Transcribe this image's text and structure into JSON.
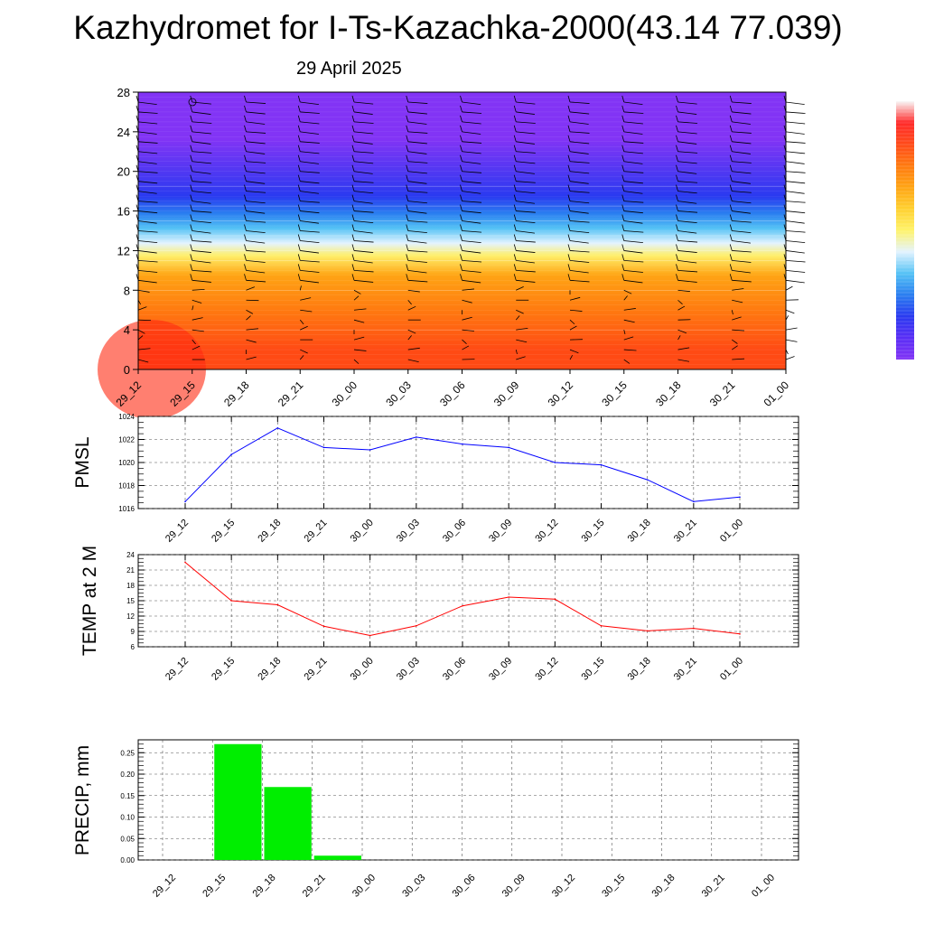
{
  "header": {
    "title": "Kazhydromet for I-Ts-Kazachka-2000(43.14 77.039)",
    "date": "29 April 2025"
  },
  "time_labels": [
    "29_12",
    "29_15",
    "29_18",
    "29_21",
    "30_00",
    "30_03",
    "30_06",
    "30_09",
    "30_12",
    "30_15",
    "30_18",
    "30_21",
    "01_00"
  ],
  "chart_data": [
    {
      "type": "heatmap",
      "ylim": [
        0,
        28
      ],
      "yticks": [
        "0",
        "4",
        "8",
        "12",
        "16",
        "20",
        "24",
        "28"
      ],
      "categories": [
        "29_12",
        "29_15",
        "29_18",
        "29_21",
        "30_00",
        "30_03",
        "30_06",
        "30_09",
        "30_12",
        "30_15",
        "30_18",
        "30_21",
        "01_00"
      ],
      "color_bands": [
        {
          "from": 0,
          "to": 4,
          "color": "#ff4a14"
        },
        {
          "from": 4,
          "to": 8,
          "color": "#ff7a10"
        },
        {
          "from": 8,
          "to": 11,
          "color": "#ffa414"
        },
        {
          "from": 11,
          "to": 12,
          "color": "#ffef6a"
        },
        {
          "from": 12,
          "to": 13.5,
          "color": "#e3f3ff"
        },
        {
          "from": 13.5,
          "to": 15,
          "color": "#54c2f5"
        },
        {
          "from": 15,
          "to": 16.5,
          "color": "#2a7ef0"
        },
        {
          "from": 16.5,
          "to": 18.5,
          "color": "#2a3af0"
        },
        {
          "from": 18.5,
          "to": 28,
          "color": "#8234f5"
        }
      ],
      "colorbar": [
        "#f8f8f8",
        "#ff2a2a",
        "#ff4b1a",
        "#ff7a10",
        "#ffa414",
        "#ffd030",
        "#fff36a",
        "#e3f3ff",
        "#54c2f5",
        "#2a7ef0",
        "#2a3af0",
        "#5a2ef5",
        "#8234f5"
      ]
    },
    {
      "type": "line",
      "ylabel": "PMSL",
      "ylim": [
        1016,
        1024
      ],
      "yticks": [
        "1016",
        "1018",
        "1020",
        "1022",
        "1024"
      ],
      "categories": [
        "29_12",
        "29_15",
        "29_18",
        "29_21",
        "30_00",
        "30_03",
        "30_06",
        "30_09",
        "30_12",
        "30_15",
        "30_18",
        "30_21",
        "01_00"
      ],
      "series": [
        {
          "values": [
            1016.6,
            1020.7,
            1023.0,
            1021.3,
            1021.1,
            1022.2,
            1021.6,
            1021.3,
            1020.0,
            1019.8,
            1018.5,
            1016.6,
            1017.0
          ],
          "color": "#0000ff"
        }
      ]
    },
    {
      "type": "line",
      "ylabel": "TEMP at 2 M",
      "ylim": [
        6,
        24
      ],
      "yticks": [
        "6",
        "9",
        "12",
        "15",
        "18",
        "21",
        "24"
      ],
      "categories": [
        "29_12",
        "29_15",
        "29_18",
        "29_21",
        "30_00",
        "30_03",
        "30_06",
        "30_09",
        "30_12",
        "30_15",
        "30_18",
        "30_21",
        "01_00"
      ],
      "series": [
        {
          "values": [
            22.5,
            15.0,
            14.2,
            10.0,
            8.2,
            10.1,
            14.0,
            15.7,
            15.3,
            10.1,
            9.1,
            9.6,
            8.5
          ],
          "color": "#ff0000"
        }
      ]
    },
    {
      "type": "bar",
      "ylabel": "PRECIP, mm",
      "ylim": [
        0,
        0.28
      ],
      "yticks": [
        "0.00",
        "0.05",
        "0.10",
        "0.15",
        "0.20",
        "0.25"
      ],
      "categories": [
        "29_12",
        "29_15",
        "29_18",
        "29_21",
        "30_00",
        "30_03",
        "30_06",
        "30_09",
        "30_12",
        "30_15",
        "30_18",
        "30_21",
        "01_00"
      ],
      "series": [
        {
          "values": [
            0,
            0.27,
            0.17,
            0.01,
            0,
            0,
            0,
            0,
            0,
            0,
            0,
            0,
            0
          ],
          "color": "#00ee00"
        }
      ]
    }
  ]
}
